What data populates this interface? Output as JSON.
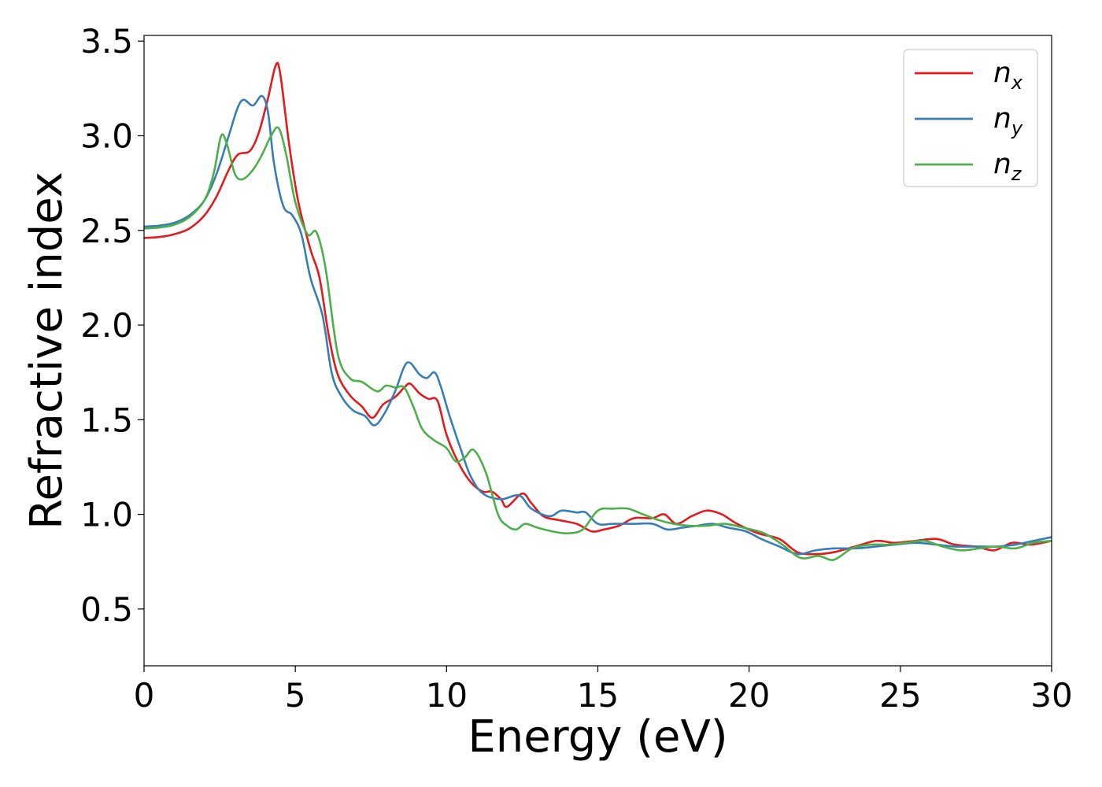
{
  "chart_data": {
    "type": "line",
    "xlabel": "Energy (eV)",
    "ylabel": "Refractive index",
    "xlim": [
      0,
      30
    ],
    "ylim": [
      0.2,
      3.53
    ],
    "x_ticks": [
      0,
      5,
      10,
      15,
      20,
      25,
      30
    ],
    "y_ticks": [
      0.5,
      1.0,
      1.5,
      2.0,
      2.5,
      3.0,
      3.5
    ],
    "x_tick_labels": [
      "0",
      "5",
      "10",
      "15",
      "20",
      "25",
      "30"
    ],
    "y_tick_labels": [
      "0.5",
      "1.0",
      "1.5",
      "2.0",
      "2.5",
      "3.0",
      "3.5"
    ],
    "grid": false,
    "legend": "top-right",
    "series": [
      {
        "name": "n",
        "subscript": "x",
        "color": "#e41a1c",
        "points": [
          [
            0,
            2.46
          ],
          [
            0.5,
            2.465
          ],
          [
            1,
            2.48
          ],
          [
            1.5,
            2.51
          ],
          [
            2,
            2.58
          ],
          [
            2.4,
            2.68
          ],
          [
            2.8,
            2.82
          ],
          [
            3.1,
            2.9
          ],
          [
            3.5,
            2.92
          ],
          [
            3.8,
            3.02
          ],
          [
            4.1,
            3.2
          ],
          [
            4.35,
            3.37
          ],
          [
            4.5,
            3.33
          ],
          [
            4.8,
            2.95
          ],
          [
            5.1,
            2.65
          ],
          [
            5.5,
            2.4
          ],
          [
            5.8,
            2.25
          ],
          [
            6.1,
            1.95
          ],
          [
            6.4,
            1.74
          ],
          [
            6.8,
            1.63
          ],
          [
            7.2,
            1.57
          ],
          [
            7.55,
            1.51
          ],
          [
            7.9,
            1.58
          ],
          [
            8.3,
            1.62
          ],
          [
            8.6,
            1.67
          ],
          [
            8.8,
            1.69
          ],
          [
            9.1,
            1.64
          ],
          [
            9.4,
            1.61
          ],
          [
            9.7,
            1.6
          ],
          [
            10,
            1.42
          ],
          [
            10.4,
            1.27
          ],
          [
            10.8,
            1.17
          ],
          [
            11.2,
            1.12
          ],
          [
            11.5,
            1.12
          ],
          [
            11.8,
            1.08
          ],
          [
            12,
            1.04
          ],
          [
            12.5,
            1.11
          ],
          [
            12.8,
            1.06
          ],
          [
            13.2,
            0.99
          ],
          [
            13.7,
            0.97
          ],
          [
            14.3,
            0.95
          ],
          [
            14.8,
            0.91
          ],
          [
            15.2,
            0.92
          ],
          [
            15.7,
            0.94
          ],
          [
            16.2,
            0.98
          ],
          [
            16.8,
            0.98
          ],
          [
            17.2,
            1.0
          ],
          [
            17.6,
            0.95
          ],
          [
            18.1,
            0.99
          ],
          [
            18.6,
            1.02
          ],
          [
            19.1,
            1.0
          ],
          [
            19.6,
            0.95
          ],
          [
            20.3,
            0.9
          ],
          [
            21,
            0.87
          ],
          [
            21.6,
            0.8
          ],
          [
            22.2,
            0.79
          ],
          [
            22.8,
            0.8
          ],
          [
            23.5,
            0.83
          ],
          [
            24.2,
            0.86
          ],
          [
            24.8,
            0.85
          ],
          [
            25.5,
            0.86
          ],
          [
            26.2,
            0.87
          ],
          [
            26.8,
            0.84
          ],
          [
            27.5,
            0.83
          ],
          [
            28.1,
            0.81
          ],
          [
            28.7,
            0.85
          ],
          [
            29.3,
            0.84
          ],
          [
            30,
            0.86
          ]
        ]
      },
      {
        "name": "n",
        "subscript": "y",
        "color": "#377eb8",
        "points": [
          [
            0,
            2.52
          ],
          [
            0.5,
            2.525
          ],
          [
            1,
            2.54
          ],
          [
            1.5,
            2.58
          ],
          [
            2,
            2.66
          ],
          [
            2.4,
            2.8
          ],
          [
            2.8,
            3.0
          ],
          [
            3.1,
            3.15
          ],
          [
            3.3,
            3.19
          ],
          [
            3.6,
            3.16
          ],
          [
            3.9,
            3.21
          ],
          [
            4.1,
            3.12
          ],
          [
            4.3,
            2.85
          ],
          [
            4.6,
            2.63
          ],
          [
            4.9,
            2.58
          ],
          [
            5.2,
            2.48
          ],
          [
            5.5,
            2.25
          ],
          [
            5.9,
            2.05
          ],
          [
            6.2,
            1.75
          ],
          [
            6.5,
            1.63
          ],
          [
            6.9,
            1.55
          ],
          [
            7.3,
            1.52
          ],
          [
            7.6,
            1.47
          ],
          [
            7.9,
            1.52
          ],
          [
            8.3,
            1.65
          ],
          [
            8.6,
            1.78
          ],
          [
            8.8,
            1.8
          ],
          [
            9.1,
            1.74
          ],
          [
            9.35,
            1.72
          ],
          [
            9.6,
            1.75
          ],
          [
            9.8,
            1.68
          ],
          [
            10.1,
            1.52
          ],
          [
            10.5,
            1.33
          ],
          [
            10.8,
            1.2
          ],
          [
            11.2,
            1.11
          ],
          [
            11.8,
            1.08
          ],
          [
            12.4,
            1.1
          ],
          [
            12.8,
            1.03
          ],
          [
            13.4,
            0.99
          ],
          [
            13.8,
            1.02
          ],
          [
            14.3,
            1.01
          ],
          [
            14.6,
            1.01
          ],
          [
            15,
            0.95
          ],
          [
            15.5,
            0.95
          ],
          [
            16.2,
            0.95
          ],
          [
            16.8,
            0.95
          ],
          [
            17.3,
            0.92
          ],
          [
            17.8,
            0.93
          ],
          [
            18.3,
            0.94
          ],
          [
            18.8,
            0.95
          ],
          [
            19.3,
            0.93
          ],
          [
            19.9,
            0.91
          ],
          [
            20.4,
            0.87
          ],
          [
            21,
            0.83
          ],
          [
            21.6,
            0.79
          ],
          [
            22.2,
            0.81
          ],
          [
            22.8,
            0.82
          ],
          [
            23.5,
            0.82
          ],
          [
            24.2,
            0.83
          ],
          [
            24.8,
            0.84
          ],
          [
            25.5,
            0.85
          ],
          [
            26.2,
            0.84
          ],
          [
            26.8,
            0.83
          ],
          [
            27.5,
            0.83
          ],
          [
            28.2,
            0.83
          ],
          [
            28.8,
            0.84
          ],
          [
            29.4,
            0.86
          ],
          [
            30,
            0.88
          ]
        ]
      },
      {
        "name": "n",
        "subscript": "z",
        "color": "#4daf4a",
        "points": [
          [
            0,
            2.51
          ],
          [
            0.5,
            2.515
          ],
          [
            1,
            2.53
          ],
          [
            1.5,
            2.57
          ],
          [
            2,
            2.66
          ],
          [
            2.3,
            2.8
          ],
          [
            2.55,
            3.0
          ],
          [
            2.75,
            2.95
          ],
          [
            3.0,
            2.8
          ],
          [
            3.25,
            2.77
          ],
          [
            3.6,
            2.82
          ],
          [
            3.9,
            2.9
          ],
          [
            4.2,
            3.0
          ],
          [
            4.45,
            3.04
          ],
          [
            4.7,
            2.9
          ],
          [
            5.0,
            2.65
          ],
          [
            5.4,
            2.48
          ],
          [
            5.7,
            2.49
          ],
          [
            6.0,
            2.3
          ],
          [
            6.4,
            1.85
          ],
          [
            6.8,
            1.72
          ],
          [
            7.2,
            1.7
          ],
          [
            7.7,
            1.65
          ],
          [
            8.0,
            1.68
          ],
          [
            8.3,
            1.67
          ],
          [
            8.6,
            1.67
          ],
          [
            8.9,
            1.57
          ],
          [
            9.2,
            1.45
          ],
          [
            9.6,
            1.39
          ],
          [
            10,
            1.35
          ],
          [
            10.3,
            1.28
          ],
          [
            10.6,
            1.3
          ],
          [
            10.9,
            1.34
          ],
          [
            11.3,
            1.22
          ],
          [
            11.7,
            1.0
          ],
          [
            12.0,
            0.94
          ],
          [
            12.3,
            0.92
          ],
          [
            12.6,
            0.95
          ],
          [
            13.0,
            0.93
          ],
          [
            13.5,
            0.91
          ],
          [
            14.0,
            0.9
          ],
          [
            14.5,
            0.92
          ],
          [
            15.0,
            1.02
          ],
          [
            15.5,
            1.03
          ],
          [
            16.0,
            1.03
          ],
          [
            16.5,
            1.0
          ],
          [
            17.0,
            0.97
          ],
          [
            17.5,
            0.95
          ],
          [
            18.0,
            0.94
          ],
          [
            18.6,
            0.94
          ],
          [
            19.2,
            0.95
          ],
          [
            19.8,
            0.93
          ],
          [
            20.5,
            0.9
          ],
          [
            21.1,
            0.84
          ],
          [
            21.7,
            0.77
          ],
          [
            22.3,
            0.78
          ],
          [
            22.8,
            0.76
          ],
          [
            23.4,
            0.82
          ],
          [
            24.0,
            0.84
          ],
          [
            24.6,
            0.84
          ],
          [
            25.2,
            0.85
          ],
          [
            25.8,
            0.86
          ],
          [
            26.4,
            0.83
          ],
          [
            27.0,
            0.81
          ],
          [
            27.6,
            0.82
          ],
          [
            28.2,
            0.83
          ],
          [
            28.8,
            0.82
          ],
          [
            29.4,
            0.85
          ],
          [
            30,
            0.86
          ]
        ]
      }
    ]
  }
}
